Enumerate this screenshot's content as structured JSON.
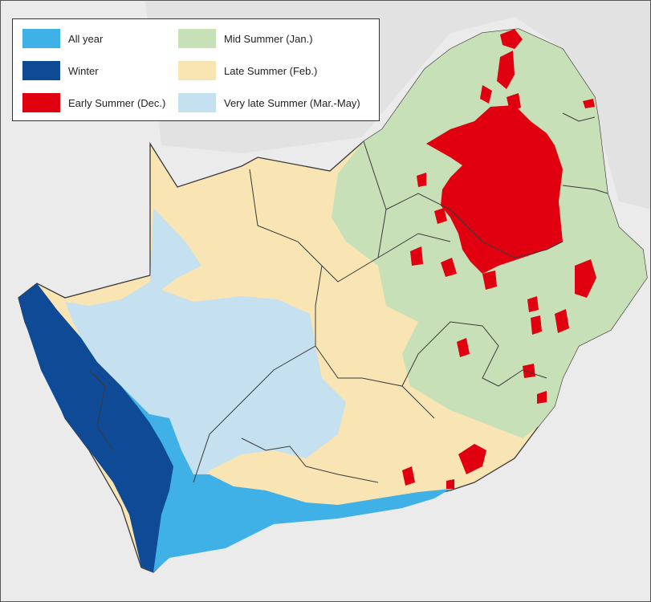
{
  "map": {
    "land_colors": {
      "all_year": "#3fb1e6",
      "winter": "#0e4a95",
      "early_summer": "#e0000f",
      "mid_summer": "#c8e0b8",
      "late_summer": "#f9e4b4",
      "very_late_summer": "#c5e0ef",
      "background": "#ebebeb",
      "border": "#3a3a3a"
    }
  },
  "legend": {
    "items": [
      {
        "key": "all_year",
        "label": "All year",
        "color": "#3fb1e6"
      },
      {
        "key": "winter",
        "label": "Winter",
        "color": "#0e4a95"
      },
      {
        "key": "early_summer",
        "label": "Early Summer (Dec.)",
        "color": "#e0000f"
      },
      {
        "key": "mid_summer",
        "label": "Mid Summer (Jan.)",
        "color": "#c8e0b8"
      },
      {
        "key": "late_summer",
        "label": "Late Summer (Feb.)",
        "color": "#f9e4b4"
      },
      {
        "key": "very_late_summer",
        "label": "Very late Summer (Mar.-May)",
        "color": "#c5e0ef"
      }
    ]
  }
}
